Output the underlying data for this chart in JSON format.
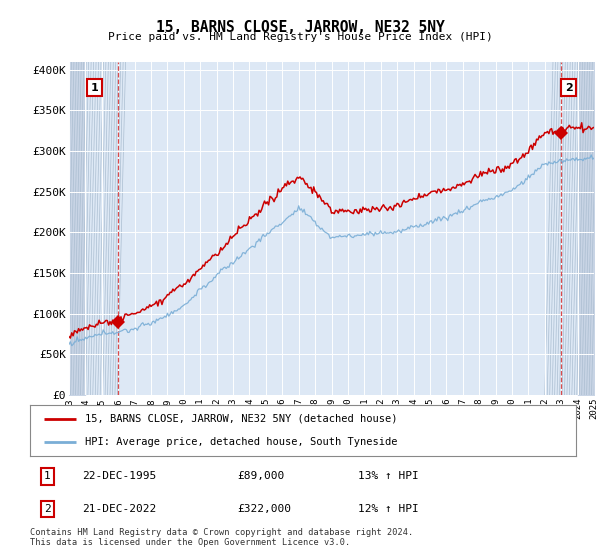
{
  "title": "15, BARNS CLOSE, JARROW, NE32 5NY",
  "subtitle": "Price paid vs. HM Land Registry's House Price Index (HPI)",
  "hpi_color": "#7aaed6",
  "price_color": "#cc0000",
  "marker_color": "#cc0000",
  "background_color": "#dde8f5",
  "hatch_bg_color": "#c8d4e5",
  "grid_color": "#ffffff",
  "point1": {
    "date_num": 1995.97,
    "value": 89000,
    "label": "1",
    "date_str": "22-DEC-1995",
    "price_str": "£89,000",
    "hpi_str": "13% ↑ HPI"
  },
  "point2": {
    "date_num": 2022.97,
    "value": 322000,
    "label": "2",
    "date_str": "21-DEC-2022",
    "price_str": "£322,000",
    "hpi_str": "12% ↑ HPI"
  },
  "legend_line1": "15, BARNS CLOSE, JARROW, NE32 5NY (detached house)",
  "legend_line2": "HPI: Average price, detached house, South Tyneside",
  "footnote": "Contains HM Land Registry data © Crown copyright and database right 2024.\nThis data is licensed under the Open Government Licence v3.0.",
  "xlim": [
    1993,
    2025
  ],
  "ylim": [
    0,
    400000
  ],
  "yticks": [
    0,
    50000,
    100000,
    150000,
    200000,
    250000,
    300000,
    350000,
    400000
  ],
  "ytick_labels": [
    "£0",
    "£50K",
    "£100K",
    "£150K",
    "£200K",
    "£250K",
    "£300K",
    "£350K",
    "£400K"
  ],
  "xticks": [
    1993,
    1994,
    1995,
    1996,
    1997,
    1998,
    1999,
    2000,
    2001,
    2002,
    2003,
    2004,
    2005,
    2006,
    2007,
    2008,
    2009,
    2010,
    2011,
    2012,
    2013,
    2014,
    2015,
    2016,
    2017,
    2018,
    2019,
    2020,
    2021,
    2022,
    2023,
    2024,
    2025
  ],
  "hatch_left_end": 1994.0,
  "hatch_right_start": 2024.0
}
